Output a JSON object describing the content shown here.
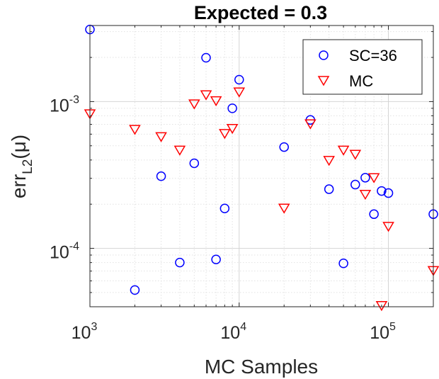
{
  "chart_data": {
    "type": "scatter",
    "title": "Expected = 0.3",
    "xlabel": "MC Samples",
    "ylabel_base": "err",
    "ylabel_sub": "L2",
    "ylabel_arg": "(μ)",
    "xscale": "log",
    "yscale": "log",
    "xlim": [
      1000,
      200000
    ],
    "ylim": [
      4e-05,
      0.0033
    ],
    "grid": true,
    "legend_position": "top-right",
    "x_ticks": [
      {
        "base": "10",
        "exp": "3",
        "value": 1000
      },
      {
        "base": "10",
        "exp": "4",
        "value": 10000
      },
      {
        "base": "10",
        "exp": "5",
        "value": 100000
      }
    ],
    "y_ticks": [
      {
        "base": "10",
        "exp": "-4",
        "value": 0.0001
      },
      {
        "base": "10",
        "exp": "-3",
        "value": 0.001
      }
    ],
    "series": [
      {
        "name": "SC=36",
        "marker": "circle",
        "color": "#0000ff",
        "points": [
          {
            "x": 1000,
            "y": 0.0031
          },
          {
            "x": 2000,
            "y": 5.2e-05
          },
          {
            "x": 3000,
            "y": 0.00031
          },
          {
            "x": 4000,
            "y": 8e-05
          },
          {
            "x": 5000,
            "y": 0.00038
          },
          {
            "x": 6000,
            "y": 0.00199
          },
          {
            "x": 7000,
            "y": 8.4e-05
          },
          {
            "x": 8000,
            "y": 0.000187
          },
          {
            "x": 9000,
            "y": 0.0009
          },
          {
            "x": 10000,
            "y": 0.00141
          },
          {
            "x": 20000,
            "y": 0.00049
          },
          {
            "x": 30000,
            "y": 0.00075
          },
          {
            "x": 40000,
            "y": 0.000253
          },
          {
            "x": 50000,
            "y": 7.9e-05
          },
          {
            "x": 60000,
            "y": 0.000272
          },
          {
            "x": 70000,
            "y": 0.000303
          },
          {
            "x": 80000,
            "y": 0.000171
          },
          {
            "x": 90000,
            "y": 0.000246
          },
          {
            "x": 100000,
            "y": 0.000238
          },
          {
            "x": 200000,
            "y": 0.000171
          }
        ]
      },
      {
        "name": "MC",
        "marker": "triangle-down",
        "color": "#ff0000",
        "points": [
          {
            "x": 1000,
            "y": 0.00083
          },
          {
            "x": 2000,
            "y": 0.00065
          },
          {
            "x": 3000,
            "y": 0.00058
          },
          {
            "x": 4000,
            "y": 0.00047
          },
          {
            "x": 5000,
            "y": 0.00097
          },
          {
            "x": 6000,
            "y": 0.00112
          },
          {
            "x": 7000,
            "y": 0.00102
          },
          {
            "x": 8000,
            "y": 0.00061
          },
          {
            "x": 9000,
            "y": 0.00066
          },
          {
            "x": 10000,
            "y": 0.00117
          },
          {
            "x": 20000,
            "y": 0.000189
          },
          {
            "x": 30000,
            "y": 0.00071
          },
          {
            "x": 40000,
            "y": 0.0004
          },
          {
            "x": 50000,
            "y": 0.00047
          },
          {
            "x": 60000,
            "y": 0.00044
          },
          {
            "x": 70000,
            "y": 0.000235
          },
          {
            "x": 80000,
            "y": 0.000305
          },
          {
            "x": 90000,
            "y": 4.1e-05
          },
          {
            "x": 100000,
            "y": 0.000142
          },
          {
            "x": 200000,
            "y": 7.1e-05
          }
        ]
      }
    ]
  }
}
